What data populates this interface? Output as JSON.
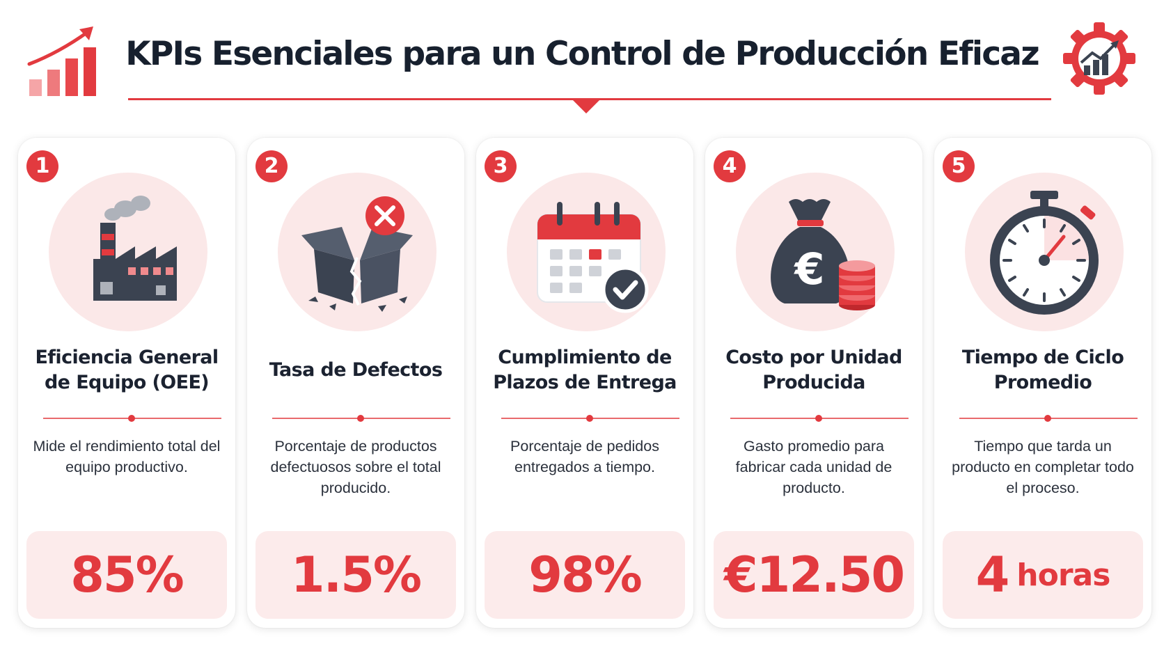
{
  "header": {
    "title": "KPIs Esenciales para un Control de Producción Eficaz",
    "left_icon": "growth-bar-chart-icon",
    "right_icon": "gear-chart-icon"
  },
  "colors": {
    "accent": "#e23a3f",
    "dark": "#3b4351",
    "soft": "#fbe8e8",
    "text": "#1f2430"
  },
  "cards": [
    {
      "number": "1",
      "icon": "factory-icon",
      "title": "Eficiencia General de Equipo (OEE)",
      "description": "Mide el rendimiento total del equipo productivo.",
      "value": "85%",
      "unit": ""
    },
    {
      "number": "2",
      "icon": "broken-box-icon",
      "title": "Tasa de Defectos",
      "description": "Porcentaje de productos defectuosos sobre el total producido.",
      "value": "1.5%",
      "unit": ""
    },
    {
      "number": "3",
      "icon": "calendar-check-icon",
      "title": "Cumplimiento de Plazos de Entrega",
      "description": "Porcentaje de pedidos entregados a tiempo.",
      "value": "98%",
      "unit": ""
    },
    {
      "number": "4",
      "icon": "money-bag-euro-icon",
      "title": "Costo por Unidad Producida",
      "description": "Gasto promedio para fabricar cada unidad de producto.",
      "value": "€12.50",
      "unit": ""
    },
    {
      "number": "5",
      "icon": "stopwatch-icon",
      "title": "Tiempo de Ciclo Promedio",
      "description": "Tiempo que tarda un producto en completar todo el proceso.",
      "value": "4",
      "unit": "horas"
    }
  ]
}
